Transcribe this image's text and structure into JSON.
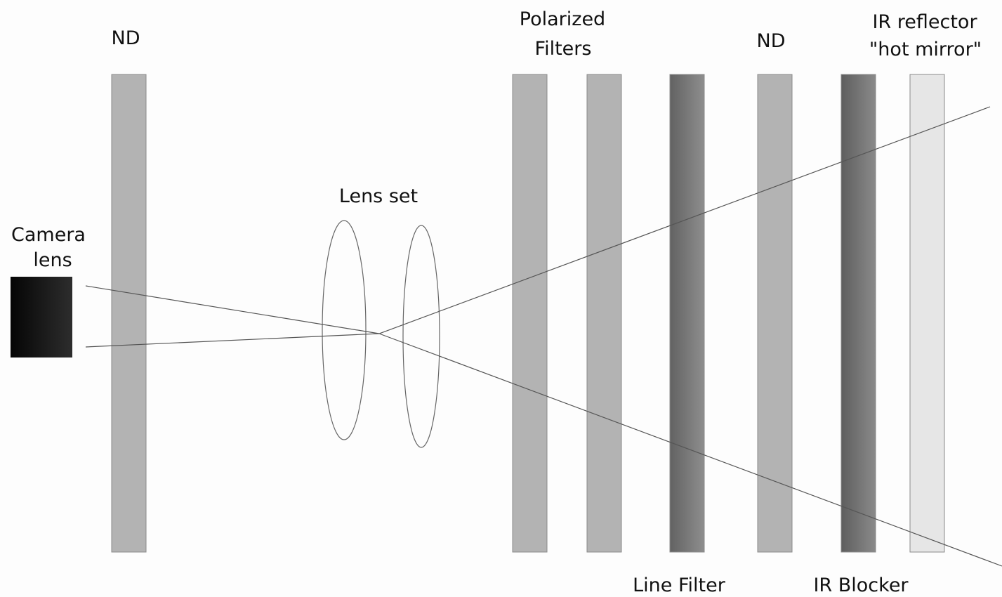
{
  "labels": {
    "camera_line1": "Camera",
    "camera_line2": "lens",
    "nd_left": "ND",
    "lens_set": "Lens set",
    "polarized_line1": "Polarized",
    "polarized_line2": "Filters",
    "nd_right": "ND",
    "ir_reflector_line1": "IR reflector",
    "ir_reflector_line2": "\"hot mirror\"",
    "line_filter": "Line Filter",
    "ir_blocker": "IR Blocker"
  },
  "colors": {
    "nd": "#b3b3b3",
    "polarized": "#b3b3b3",
    "line_filter_dark": "#626262",
    "line_filter_light": "#8e8e8e",
    "ir_blocker_dark": "#5e5e5e",
    "ir_blocker_light": "#8a8a8a",
    "hot_mirror": "#e6e6e6",
    "camera_dark": "#050505",
    "camera_light": "#2d2d2d",
    "background": "#fdfdfd"
  }
}
